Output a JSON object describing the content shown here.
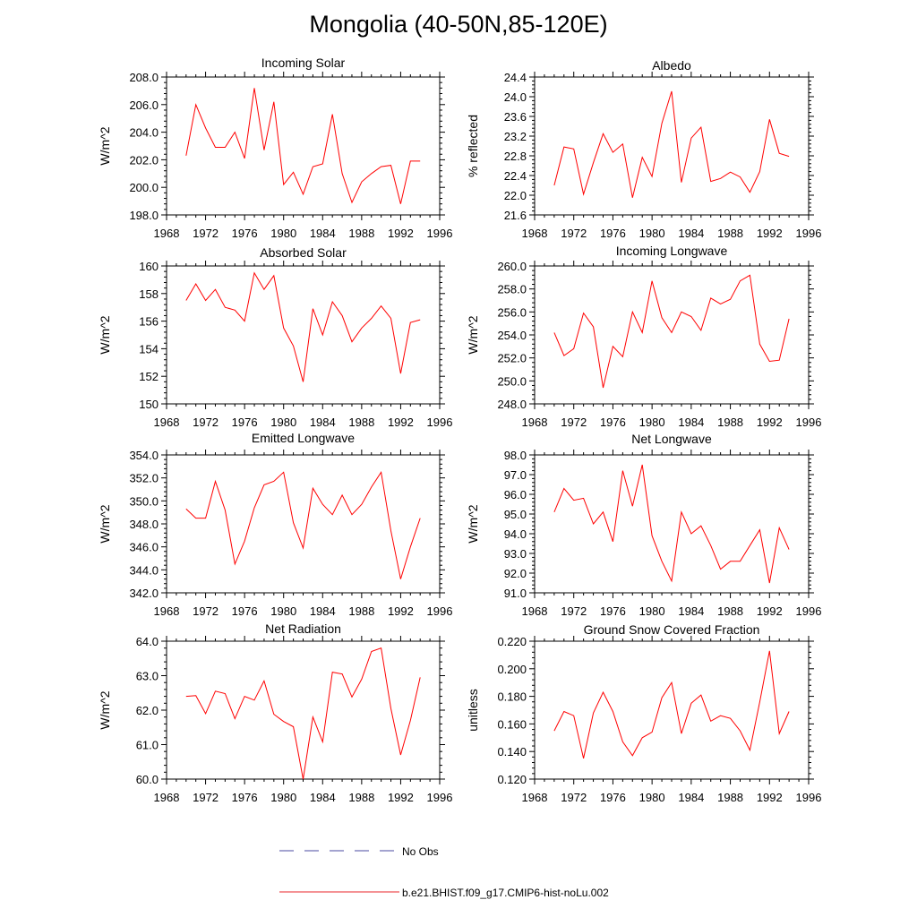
{
  "title": "Mongolia (40-50N,85-120E)",
  "legend": {
    "items": [
      {
        "label": "No Obs",
        "color": "#4a4aa0",
        "style": "dashed"
      },
      {
        "label": "b.e21.BHIST.f09_g17.CMIP6-hist-noLu.002",
        "color": "#e8262a",
        "style": "solid"
      }
    ]
  },
  "colors": {
    "series": "#ff0000",
    "axis": "#000000"
  },
  "chart_data": [
    {
      "type": "line",
      "title": "Incoming Solar",
      "ylabel": "W/m^2",
      "xlim": [
        1968,
        1996
      ],
      "ylim": [
        198.0,
        208.0
      ],
      "xticks": [
        "1968",
        "1972",
        "1976",
        "1980",
        "1984",
        "1988",
        "1992",
        "1996"
      ],
      "yticks": [
        "198.0",
        "200.0",
        "202.0",
        "204.0",
        "206.0",
        "208.0"
      ],
      "x": [
        1970,
        1971,
        1972,
        1973,
        1974,
        1975,
        1976,
        1977,
        1978,
        1979,
        1980,
        1981,
        1982,
        1983,
        1984,
        1985,
        1986,
        1987,
        1988,
        1989,
        1990,
        1991,
        1992,
        1993,
        1994
      ],
      "series": [
        {
          "name": "b.e21.BHIST.f09_g17.CMIP6-hist-noLu.002",
          "values": [
            202.3,
            206.0,
            204.3,
            202.9,
            202.9,
            204.0,
            202.1,
            207.2,
            202.7,
            206.2,
            200.2,
            201.1,
            199.5,
            201.5,
            201.7,
            205.3,
            201.0,
            198.9,
            200.4,
            201.0,
            201.5,
            201.6,
            198.8,
            201.9,
            201.9
          ]
        }
      ]
    },
    {
      "type": "line",
      "title": "Albedo",
      "ylabel": "% reflected",
      "xlim": [
        1968,
        1996
      ],
      "ylim": [
        21.6,
        24.4
      ],
      "xticks": [
        "1968",
        "1972",
        "1976",
        "1980",
        "1984",
        "1988",
        "1992",
        "1996"
      ],
      "yticks": [
        "21.6",
        "22.0",
        "22.4",
        "22.8",
        "23.2",
        "23.6",
        "24.0",
        "24.4"
      ],
      "x": [
        1970,
        1971,
        1972,
        1973,
        1974,
        1975,
        1976,
        1977,
        1978,
        1979,
        1980,
        1981,
        1982,
        1983,
        1984,
        1985,
        1986,
        1987,
        1988,
        1989,
        1990,
        1991,
        1992,
        1993,
        1994
      ],
      "series": [
        {
          "name": "b.e21.BHIST.f09_g17.CMIP6-hist-noLu.002",
          "values": [
            22.2,
            22.98,
            22.94,
            22.02,
            22.66,
            23.25,
            22.87,
            23.04,
            21.95,
            22.77,
            22.38,
            23.46,
            24.11,
            22.26,
            23.16,
            23.38,
            22.28,
            22.34,
            22.47,
            22.37,
            22.06,
            22.48,
            23.54,
            22.85,
            22.79
          ]
        }
      ]
    },
    {
      "type": "line",
      "title": "Absorbed Solar",
      "ylabel": "W/m^2",
      "xlim": [
        1968,
        1996
      ],
      "ylim": [
        150,
        160
      ],
      "xticks": [
        "1968",
        "1972",
        "1976",
        "1980",
        "1984",
        "1988",
        "1992",
        "1996"
      ],
      "yticks": [
        "150",
        "152",
        "154",
        "156",
        "158",
        "160"
      ],
      "x": [
        1970,
        1971,
        1972,
        1973,
        1974,
        1975,
        1976,
        1977,
        1978,
        1979,
        1980,
        1981,
        1982,
        1983,
        1984,
        1985,
        1986,
        1987,
        1988,
        1989,
        1990,
        1991,
        1992,
        1993,
        1994
      ],
      "series": [
        {
          "name": "b.e21.BHIST.f09_g17.CMIP6-hist-noLu.002",
          "values": [
            157.5,
            158.7,
            157.5,
            158.3,
            157.0,
            156.8,
            156.0,
            159.5,
            158.3,
            159.3,
            155.5,
            154.2,
            151.6,
            156.9,
            155.0,
            157.4,
            156.4,
            154.5,
            155.5,
            156.2,
            157.1,
            156.2,
            152.2,
            155.9,
            156.1
          ]
        }
      ]
    },
    {
      "type": "line",
      "title": "Incoming Longwave",
      "ylabel": "W/m^2",
      "xlim": [
        1968,
        1996
      ],
      "ylim": [
        248.0,
        260.0
      ],
      "xticks": [
        "1968",
        "1972",
        "1976",
        "1980",
        "1984",
        "1988",
        "1992",
        "1996"
      ],
      "yticks": [
        "248.0",
        "250.0",
        "252.0",
        "254.0",
        "256.0",
        "258.0",
        "260.0"
      ],
      "x": [
        1970,
        1971,
        1972,
        1973,
        1974,
        1975,
        1976,
        1977,
        1978,
        1979,
        1980,
        1981,
        1982,
        1983,
        1984,
        1985,
        1986,
        1987,
        1988,
        1989,
        1990,
        1991,
        1992,
        1993,
        1994
      ],
      "series": [
        {
          "name": "b.e21.BHIST.f09_g17.CMIP6-hist-noLu.002",
          "values": [
            254.2,
            252.2,
            252.8,
            255.9,
            254.7,
            249.4,
            253.0,
            252.1,
            256.0,
            254.2,
            258.7,
            255.5,
            254.2,
            256.0,
            255.6,
            254.4,
            257.2,
            256.7,
            257.1,
            258.7,
            259.2,
            253.2,
            251.7,
            251.8,
            255.4
          ]
        }
      ]
    },
    {
      "type": "line",
      "title": "Emitted Longwave",
      "ylabel": "W/m^2",
      "xlim": [
        1968,
        1996
      ],
      "ylim": [
        342.0,
        354.0
      ],
      "xticks": [
        "1968",
        "1972",
        "1976",
        "1980",
        "1984",
        "1988",
        "1992",
        "1996"
      ],
      "yticks": [
        "342.0",
        "344.0",
        "346.0",
        "348.0",
        "350.0",
        "352.0",
        "354.0"
      ],
      "x": [
        1970,
        1971,
        1972,
        1973,
        1974,
        1975,
        1976,
        1977,
        1978,
        1979,
        1980,
        1981,
        1982,
        1983,
        1984,
        1985,
        1986,
        1987,
        1988,
        1989,
        1990,
        1991,
        1992,
        1993,
        1994
      ],
      "series": [
        {
          "name": "b.e21.BHIST.f09_g17.CMIP6-hist-noLu.002",
          "values": [
            349.3,
            348.5,
            348.5,
            351.7,
            349.2,
            344.5,
            346.5,
            349.4,
            351.4,
            351.7,
            352.5,
            348.1,
            345.9,
            351.1,
            349.7,
            348.8,
            350.5,
            348.8,
            349.7,
            351.2,
            352.5,
            347.4,
            343.2,
            346.0,
            348.5
          ]
        }
      ]
    },
    {
      "type": "line",
      "title": "Net Longwave",
      "ylabel": "W/m^2",
      "xlim": [
        1968,
        1996
      ],
      "ylim": [
        91.0,
        98.0
      ],
      "xticks": [
        "1968",
        "1972",
        "1976",
        "1980",
        "1984",
        "1988",
        "1992",
        "1996"
      ],
      "yticks": [
        "91.0",
        "92.0",
        "93.0",
        "94.0",
        "95.0",
        "96.0",
        "97.0",
        "98.0"
      ],
      "x": [
        1970,
        1971,
        1972,
        1973,
        1974,
        1975,
        1976,
        1977,
        1978,
        1979,
        1980,
        1981,
        1982,
        1983,
        1984,
        1985,
        1986,
        1987,
        1988,
        1989,
        1990,
        1991,
        1992,
        1993,
        1994
      ],
      "series": [
        {
          "name": "b.e21.BHIST.f09_g17.CMIP6-hist-noLu.002",
          "values": [
            95.1,
            96.3,
            95.7,
            95.8,
            94.5,
            95.1,
            93.6,
            97.2,
            95.4,
            97.5,
            93.9,
            92.6,
            91.6,
            95.1,
            94.0,
            94.4,
            93.4,
            92.2,
            92.6,
            92.6,
            93.4,
            94.2,
            91.5,
            94.3,
            93.2
          ]
        }
      ]
    },
    {
      "type": "line",
      "title": "Net Radiation",
      "ylabel": "W/m^2",
      "xlim": [
        1968,
        1996
      ],
      "ylim": [
        60.0,
        64.0
      ],
      "xticks": [
        "1968",
        "1972",
        "1976",
        "1980",
        "1984",
        "1988",
        "1992",
        "1996"
      ],
      "yticks": [
        "60.0",
        "61.0",
        "62.0",
        "63.0",
        "64.0"
      ],
      "x": [
        1970,
        1971,
        1972,
        1973,
        1974,
        1975,
        1976,
        1977,
        1978,
        1979,
        1980,
        1981,
        1982,
        1983,
        1984,
        1985,
        1986,
        1987,
        1988,
        1989,
        1990,
        1991,
        1992,
        1993,
        1994
      ],
      "series": [
        {
          "name": "b.e21.BHIST.f09_g17.CMIP6-hist-noLu.002",
          "values": [
            62.4,
            62.42,
            61.9,
            62.55,
            62.48,
            61.75,
            62.4,
            62.29,
            62.85,
            61.88,
            61.67,
            61.52,
            60.0,
            61.8,
            61.08,
            63.1,
            63.05,
            62.38,
            62.9,
            63.7,
            63.8,
            62.05,
            60.7,
            61.7,
            62.95
          ]
        }
      ]
    },
    {
      "type": "line",
      "title": "Ground Snow Covered Fraction",
      "ylabel": "unitless",
      "xlim": [
        1968,
        1996
      ],
      "ylim": [
        0.12,
        0.22
      ],
      "xticks": [
        "1968",
        "1972",
        "1976",
        "1980",
        "1984",
        "1988",
        "1992",
        "1996"
      ],
      "yticks": [
        "0.120",
        "0.140",
        "0.160",
        "0.180",
        "0.200",
        "0.220"
      ],
      "x": [
        1970,
        1971,
        1972,
        1973,
        1974,
        1975,
        1976,
        1977,
        1978,
        1979,
        1980,
        1981,
        1982,
        1983,
        1984,
        1985,
        1986,
        1987,
        1988,
        1989,
        1990,
        1991,
        1992,
        1993,
        1994
      ],
      "series": [
        {
          "name": "b.e21.BHIST.f09_g17.CMIP6-hist-noLu.002",
          "values": [
            0.155,
            0.169,
            0.166,
            0.135,
            0.168,
            0.183,
            0.169,
            0.147,
            0.137,
            0.15,
            0.154,
            0.179,
            0.19,
            0.153,
            0.175,
            0.181,
            0.162,
            0.166,
            0.164,
            0.155,
            0.141,
            0.176,
            0.213,
            0.153,
            0.169
          ]
        }
      ]
    }
  ]
}
